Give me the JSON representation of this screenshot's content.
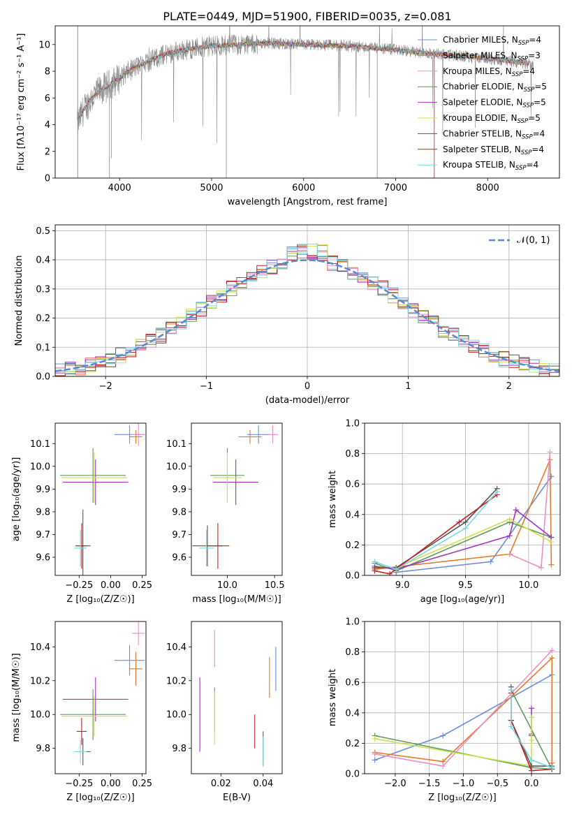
{
  "page_title": "PLATE=0449, MJD=51900, FIBERID=0035, z=0.081",
  "colors": {
    "Chabrier MILES": "#6a8fd8",
    "Salpeter MILES": "#e57a2b",
    "Kroupa MILES": "#e88fc6",
    "Chabrier ELODIE": "#5e9a5e",
    "Salpeter ELODIE": "#a233c2",
    "Kroupa ELODIE": "#cfe04a",
    "Chabrier STELIB": "#555555",
    "Salpeter STELIB": "#c42020",
    "Kroupa STELIB": "#78d8e0",
    "data": "#8a8a8a",
    "normal_curve": "#5b8ad6"
  },
  "chart_data": [
    {
      "type": "line",
      "title": "PLATE=0449, MJD=51900, FIBERID=0035, z=0.081",
      "xlabel": "wavelength [Angstrom, rest frame]",
      "ylabel": "Flux [fλ10⁻¹⁷ erg cm⁻² s⁻¹ A⁻¹]",
      "xlim": [
        3300,
        8780
      ],
      "ylim": [
        0,
        11.4
      ],
      "xticks": [
        4000,
        5000,
        6000,
        7000,
        8000
      ],
      "yticks": [
        0,
        2,
        4,
        6,
        8,
        10
      ],
      "continuum": {
        "x": [
          3540,
          3600,
          3700,
          3800,
          3900,
          4000,
          4100,
          4200,
          4300,
          4500,
          4700,
          5000,
          5300,
          5600,
          6000,
          6500,
          7000,
          7400,
          7800,
          8200,
          8500
        ],
        "y": [
          4.0,
          5.0,
          6.0,
          6.6,
          7.0,
          7.5,
          8.0,
          8.4,
          8.7,
          9.3,
          9.6,
          9.9,
          10.0,
          10.1,
          10.0,
          9.9,
          9.6,
          9.3,
          9.1,
          8.8,
          8.5
        ]
      },
      "legend_position": "right",
      "series": [
        {
          "name": "Chabrier MILES, N_SSP=4",
          "label": "Chabrier MILES, N",
          "sub": "SSP",
          "nssp": "=4"
        },
        {
          "name": "Salpeter MILES, N_SSP=3",
          "label": "Salpeter MILES, N",
          "sub": "SSP",
          "nssp": "=3"
        },
        {
          "name": "Kroupa MILES, N_SSP=4",
          "label": "Kroupa MILES, N",
          "sub": "SSP",
          "nssp": "=4"
        },
        {
          "name": "Chabrier ELODIE, N_SSP=5",
          "label": "Chabrier ELODIE, N",
          "sub": "SSP",
          "nssp": "=5"
        },
        {
          "name": "Salpeter ELODIE, N_SSP=5",
          "label": "Salpeter ELODIE, N",
          "sub": "SSP",
          "nssp": "=5"
        },
        {
          "name": "Kroupa ELODIE, N_SSP=5",
          "label": "Kroupa ELODIE, N",
          "sub": "SSP",
          "nssp": "=5"
        },
        {
          "name": "Chabrier STELIB, N_SSP=4",
          "label": "Chabrier STELIB, N",
          "sub": "SSP",
          "nssp": "=4"
        },
        {
          "name": "Salpeter STELIB, N_SSP=4",
          "label": "Salpeter STELIB, N",
          "sub": "SSP",
          "nssp": "=4"
        },
        {
          "name": "Kroupa STELIB, N_SSP=4",
          "label": "Kroupa STELIB, N",
          "sub": "SSP",
          "nssp": "=4"
        }
      ]
    },
    {
      "type": "histogram",
      "xlabel": "(data-model)/error",
      "ylabel": "Normed distribution",
      "xlim": [
        -2.5,
        2.5
      ],
      "ylim": [
        0,
        0.52
      ],
      "xticks": [
        -2,
        -1,
        0,
        1,
        2
      ],
      "yticks": [
        0.0,
        0.1,
        0.2,
        0.3,
        0.4,
        0.5
      ],
      "grid": true,
      "bin_width": 0.1,
      "legend": "𝒩(0, 1)",
      "reference_curve": "normal(0,1)"
    },
    {
      "type": "errorbar",
      "xlabel": "Z [log₁₀(Z/Z☉)]",
      "ylabel": "age [log₁₀(age/yr)]",
      "xlim": [
        -0.44,
        0.28
      ],
      "ylim": [
        9.52,
        10.19
      ],
      "xticks": [
        -0.25,
        0.0,
        0.25
      ],
      "yticks": [
        9.6,
        9.7,
        9.8,
        9.9,
        10.0,
        10.1
      ],
      "points": [
        {
          "series": 0,
          "x": 0.15,
          "xerr": 0.12,
          "y": 10.14,
          "yerr": 0.04
        },
        {
          "series": 1,
          "x": 0.2,
          "xerr": 0.05,
          "y": 10.13,
          "yerr": 0.03
        },
        {
          "series": 2,
          "x": 0.22,
          "xerr": 0.05,
          "y": 10.14,
          "yerr": 0.05
        },
        {
          "series": 3,
          "x": -0.14,
          "xerr": 0.26,
          "y": 9.96,
          "yerr": 0.12
        },
        {
          "series": 4,
          "x": -0.12,
          "xerr": 0.26,
          "y": 9.93,
          "yerr": 0.1
        },
        {
          "series": 5,
          "x": -0.13,
          "xerr": 0.26,
          "y": 9.95,
          "yerr": 0.11
        },
        {
          "series": 6,
          "x": -0.22,
          "xerr": 0.06,
          "y": 9.65,
          "yerr": 0.16
        },
        {
          "series": 7,
          "x": -0.23,
          "xerr": 0.04,
          "y": 9.65,
          "yerr": 0.1
        },
        {
          "series": 8,
          "x": -0.24,
          "xerr": 0.05,
          "y": 9.64,
          "yerr": 0.08
        }
      ]
    },
    {
      "type": "errorbar",
      "xlabel": "mass [log₁₀(M/M☉)]",
      "ylabel": "",
      "xlim": [
        9.62,
        10.58
      ],
      "ylim": [
        9.52,
        10.19
      ],
      "xticks": [
        10.0,
        10.5
      ],
      "yticks": [
        9.6,
        9.7,
        9.8,
        9.9,
        10.0,
        10.1
      ],
      "points": [
        {
          "series": 0,
          "x": 10.33,
          "xerr": 0.12,
          "y": 10.14,
          "yerr": 0.04
        },
        {
          "series": 1,
          "x": 10.24,
          "xerr": 0.12,
          "y": 10.13,
          "yerr": 0.03
        },
        {
          "series": 2,
          "x": 10.48,
          "xerr": 0.06,
          "y": 10.14,
          "yerr": 0.04
        },
        {
          "series": 3,
          "x": 10.0,
          "xerr": 0.18,
          "y": 9.96,
          "yerr": 0.12
        },
        {
          "series": 4,
          "x": 10.09,
          "xerr": 0.24,
          "y": 9.93,
          "yerr": 0.1
        },
        {
          "series": 5,
          "x": 10.0,
          "xerr": 0.15,
          "y": 9.95,
          "yerr": 0.11
        },
        {
          "series": 6,
          "x": 9.79,
          "xerr": 0.16,
          "y": 9.65,
          "yerr": 0.09
        },
        {
          "series": 7,
          "x": 9.9,
          "xerr": 0.12,
          "y": 9.65,
          "yerr": 0.1
        },
        {
          "series": 8,
          "x": 9.78,
          "xerr": 0.08,
          "y": 9.64,
          "yerr": 0.08
        }
      ]
    },
    {
      "type": "line",
      "xlabel": "age  [log₁₀(age/yr)]",
      "ylabel": "mass weight",
      "xlim": [
        8.7,
        10.25
      ],
      "ylim": [
        0,
        1.0
      ],
      "xticks": [
        9.0,
        9.5,
        10.0
      ],
      "yticks": [
        0.0,
        0.2,
        0.4,
        0.6,
        0.8,
        1.0
      ],
      "grid": true,
      "series": [
        {
          "series": 0,
          "points": [
            [
              8.95,
              0.02
            ],
            [
              9.7,
              0.09
            ],
            [
              10.18,
              0.65
            ]
          ]
        },
        {
          "series": 1,
          "points": [
            [
              8.78,
              0.04
            ],
            [
              9.85,
              0.14
            ],
            [
              10.17,
              0.76
            ],
            [
              10.18,
              0.07
            ]
          ]
        },
        {
          "series": 2,
          "points": [
            [
              9.85,
              0.14
            ],
            [
              10.1,
              0.05
            ],
            [
              10.17,
              0.81
            ]
          ]
        },
        {
          "series": 3,
          "points": [
            [
              8.78,
              0.08
            ],
            [
              8.95,
              0.03
            ],
            [
              9.85,
              0.35
            ],
            [
              10.18,
              0.25
            ]
          ]
        },
        {
          "series": 4,
          "points": [
            [
              8.78,
              0.06
            ],
            [
              8.95,
              0.04
            ],
            [
              9.85,
              0.26
            ],
            [
              9.9,
              0.43
            ],
            [
              10.18,
              0.25
            ]
          ]
        },
        {
          "series": 5,
          "points": [
            [
              8.78,
              0.05
            ],
            [
              8.95,
              0.05
            ],
            [
              9.85,
              0.37
            ],
            [
              10.18,
              0.22
            ]
          ]
        },
        {
          "series": 6,
          "points": [
            [
              8.78,
              0.05
            ],
            [
              8.95,
              0.05
            ],
            [
              9.5,
              0.35
            ],
            [
              9.75,
              0.57
            ]
          ]
        },
        {
          "series": 7,
          "points": [
            [
              8.78,
              0.03
            ],
            [
              8.9,
              0.01
            ],
            [
              9.45,
              0.35
            ],
            [
              9.75,
              0.53
            ]
          ]
        },
        {
          "series": 8,
          "points": [
            [
              8.78,
              0.09
            ],
            [
              8.95,
              0.04
            ],
            [
              9.5,
              0.31
            ],
            [
              9.75,
              0.55
            ]
          ]
        }
      ]
    },
    {
      "type": "errorbar",
      "xlabel": "Z [log₁₀(Z/Z☉)]",
      "ylabel": "mass [log₁₀(M/M☉)]",
      "xlim": [
        -0.44,
        0.28
      ],
      "ylim": [
        9.65,
        10.55
      ],
      "xticks": [
        -0.25,
        0.0,
        0.25
      ],
      "yticks": [
        9.8,
        10.0,
        10.2,
        10.4
      ],
      "points": [
        {
          "series": 0,
          "x": 0.15,
          "xerr": 0.12,
          "y": 10.32,
          "yerr": 0.09
        },
        {
          "series": 1,
          "x": 0.2,
          "xerr": 0.05,
          "y": 10.27,
          "yerr": 0.1
        },
        {
          "series": 2,
          "x": 0.22,
          "xerr": 0.05,
          "y": 10.48,
          "yerr": 0.07
        },
        {
          "series": 3,
          "x": -0.14,
          "xerr": 0.26,
          "y": 10.0,
          "yerr": 0.15
        },
        {
          "series": 4,
          "x": -0.12,
          "xerr": 0.26,
          "y": 10.09,
          "yerr": 0.13
        },
        {
          "series": 5,
          "x": -0.13,
          "xerr": 0.26,
          "y": 9.99,
          "yerr": 0.12
        },
        {
          "series": 6,
          "x": -0.22,
          "xerr": 0.06,
          "y": 9.78,
          "yerr": 0.08
        },
        {
          "series": 7,
          "x": -0.23,
          "xerr": 0.04,
          "y": 9.9,
          "yerr": 0.08
        },
        {
          "series": 8,
          "x": -0.24,
          "xerr": 0.05,
          "y": 9.78,
          "yerr": 0.07
        }
      ]
    },
    {
      "type": "errorbar",
      "xlabel": "E(B-V)",
      "ylabel": "",
      "xlim": [
        0.006,
        0.049
      ],
      "ylim": [
        9.65,
        10.55
      ],
      "xticks": [
        0.02,
        0.04
      ],
      "yticks": [
        9.8,
        10.0,
        10.2,
        10.4
      ],
      "points": [
        {
          "series": 0,
          "x": 0.046,
          "xerr": 0,
          "y": 10.27,
          "yerr": 0.13
        },
        {
          "series": 1,
          "x": 0.043,
          "xerr": 0,
          "y": 10.22,
          "yerr": 0.12
        },
        {
          "series": 2,
          "x": 0.017,
          "xerr": 0,
          "y": 10.39,
          "yerr": 0.11
        },
        {
          "series": 3,
          "x": 0.017,
          "xerr": 0,
          "y": 10.03,
          "yerr": 0.13
        },
        {
          "series": 4,
          "x": 0.01,
          "xerr": 0,
          "y": 10.0,
          "yerr": 0.22
        },
        {
          "series": 5,
          "x": 0.017,
          "xerr": 0,
          "y": 9.98,
          "yerr": 0.16
        },
        {
          "series": 6,
          "x": 0.04,
          "xerr": 0,
          "y": 9.8,
          "yerr": 0.1
        },
        {
          "series": 7,
          "x": 0.036,
          "xerr": 0,
          "y": 9.9,
          "yerr": 0.1
        },
        {
          "series": 8,
          "x": 0.04,
          "xerr": 0,
          "y": 9.78,
          "yerr": 0.09
        }
      ]
    },
    {
      "type": "line",
      "xlabel": "Z [log₁₀(Z/Z☉)]",
      "ylabel": "mass weight",
      "xlim": [
        -2.45,
        0.42
      ],
      "ylim": [
        0,
        1.0
      ],
      "xticks": [
        -2.0,
        -1.5,
        -1.0,
        -0.5,
        0.0
      ],
      "yticks": [
        0.0,
        0.2,
        0.4,
        0.6,
        0.8,
        1.0
      ],
      "grid": true,
      "series": [
        {
          "series": 0,
          "points": [
            [
              -2.3,
              0.09
            ],
            [
              -1.3,
              0.25
            ],
            [
              0.3,
              0.65
            ]
          ]
        },
        {
          "series": 1,
          "points": [
            [
              -2.3,
              0.14
            ],
            [
              -1.3,
              0.08
            ],
            [
              0.3,
              0.76
            ],
            [
              0.3,
              0.07
            ]
          ]
        },
        {
          "series": 2,
          "points": [
            [
              -2.3,
              0.13
            ],
            [
              -1.3,
              0.05
            ],
            [
              0.3,
              0.81
            ]
          ]
        },
        {
          "series": 3,
          "points": [
            [
              -2.3,
              0.25
            ],
            [
              0.0,
              0.04
            ],
            [
              0.3,
              0.03
            ],
            [
              -0.3,
              0.55
            ],
            [
              -0.3,
              0.35
            ]
          ]
        },
        {
          "series": 4,
          "points": [
            [
              0.0,
              0.43
            ],
            [
              0.0,
              0.26
            ],
            [
              0.0,
              0.25
            ]
          ]
        },
        {
          "series": 5,
          "points": [
            [
              -2.3,
              0.23
            ],
            [
              0.0,
              0.05
            ],
            [
              0.0,
              0.37
            ],
            [
              0.0,
              0.22
            ]
          ]
        },
        {
          "series": 6,
          "points": [
            [
              -0.3,
              0.57
            ],
            [
              -0.3,
              0.35
            ],
            [
              0.0,
              0.05
            ],
            [
              0.3,
              0.05
            ]
          ]
        },
        {
          "series": 7,
          "points": [
            [
              -0.3,
              0.53
            ],
            [
              -0.3,
              0.35
            ],
            [
              0.0,
              0.02
            ],
            [
              0.3,
              0.03
            ]
          ]
        },
        {
          "series": 8,
          "points": [
            [
              -0.3,
              0.55
            ],
            [
              -0.3,
              0.31
            ],
            [
              0.0,
              0.09
            ],
            [
              0.3,
              0.04
            ]
          ]
        }
      ]
    }
  ]
}
